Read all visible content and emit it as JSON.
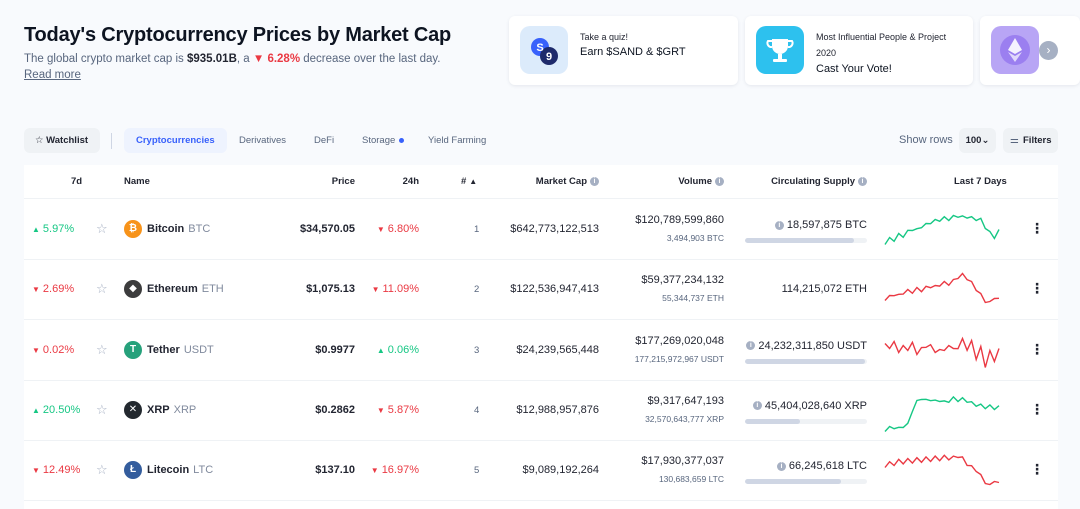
{
  "hero": {
    "title": "Today's Cryptocurrency Prices by Market Cap",
    "sub_prefix": "The global crypto market cap is ",
    "market_cap": "$935.01B",
    "sub_mid": ", a ",
    "change": "6.28%",
    "sub_suffix": " decrease over the last day.",
    "read_more": "Read more"
  },
  "promos": [
    {
      "small": "Take a quiz!",
      "big": "Earn $SAND & $GRT",
      "icon": "quiz-badge-icon"
    },
    {
      "small": "Most Influential People & Project 2020",
      "big": "Cast Your Vote!",
      "icon": "trophy-icon"
    },
    {
      "small": "",
      "big": "",
      "icon": "ethereum-gem-icon"
    }
  ],
  "toolbar": {
    "watchlist": "Watchlist",
    "tabs": [
      "Cryptocurrencies",
      "Derivatives",
      "DeFi",
      "Storage",
      "Yield Farming"
    ],
    "show_rows_label": "Show rows",
    "rows_value": "100",
    "filters": "Filters"
  },
  "table": {
    "headers": {
      "d7": "7d",
      "name": "Name",
      "price": "Price",
      "h24": "24h",
      "rank": "#",
      "market_cap": "Market Cap",
      "volume": "Volume",
      "supply": "Circulating Supply",
      "last7": "Last 7 Days"
    },
    "rows": [
      {
        "d7": "5.97%",
        "d7_dir": "up",
        "name": "Bitcoin",
        "symbol": "BTC",
        "price": "$34,570.05",
        "h24": "6.80%",
        "h24_dir": "down",
        "rank": "1",
        "market_cap": "$642,773,122,513",
        "volume": "$120,789,599,860",
        "volume_sub": "3,494,903 BTC",
        "supply": "18,597,875 BTC",
        "supply_fill": 0.89,
        "icon_color": "#f7931a",
        "icon_glyph": "₿",
        "spark_color": "#16c784"
      },
      {
        "d7": "2.69%",
        "d7_dir": "down",
        "name": "Ethereum",
        "symbol": "ETH",
        "price": "$1,075.13",
        "h24": "11.09%",
        "h24_dir": "down",
        "rank": "2",
        "market_cap": "$122,536,947,413",
        "volume": "$59,377,234,132",
        "volume_sub": "55,344,737 ETH",
        "supply": "114,215,072 ETH",
        "supply_fill": null,
        "icon_color": "#3c3c3d",
        "icon_glyph": "◆",
        "spark_color": "#ea3943"
      },
      {
        "d7": "0.02%",
        "d7_dir": "down",
        "name": "Tether",
        "symbol": "USDT",
        "price": "$0.9977",
        "h24": "0.06%",
        "h24_dir": "up",
        "rank": "3",
        "market_cap": "$24,239,565,448",
        "volume": "$177,269,020,048",
        "volume_sub": "177,215,972,967 USDT",
        "supply": "24,232,311,850 USDT",
        "supply_fill": 0.98,
        "icon_color": "#26a17b",
        "icon_glyph": "T",
        "spark_color": "#ea3943"
      },
      {
        "d7": "20.50%",
        "d7_dir": "up",
        "name": "XRP",
        "symbol": "XRP",
        "price": "$0.2862",
        "h24": "5.87%",
        "h24_dir": "down",
        "rank": "4",
        "market_cap": "$12,988,957,876",
        "volume": "$9,317,647,193",
        "volume_sub": "32,570,643,777 XRP",
        "supply": "45,404,028,640 XRP",
        "supply_fill": 0.45,
        "icon_color": "#23292f",
        "icon_glyph": "✕",
        "spark_color": "#16c784"
      },
      {
        "d7": "12.49%",
        "d7_dir": "down",
        "name": "Litecoin",
        "symbol": "LTC",
        "price": "$137.10",
        "h24": "16.97%",
        "h24_dir": "down",
        "rank": "5",
        "market_cap": "$9,089,192,264",
        "volume": "$17,930,377,037",
        "volume_sub": "130,683,659 LTC",
        "supply": "66,245,618 LTC",
        "supply_fill": 0.79,
        "icon_color": "#345d9d",
        "icon_glyph": "Ł",
        "spark_color": "#ea3943"
      }
    ]
  }
}
